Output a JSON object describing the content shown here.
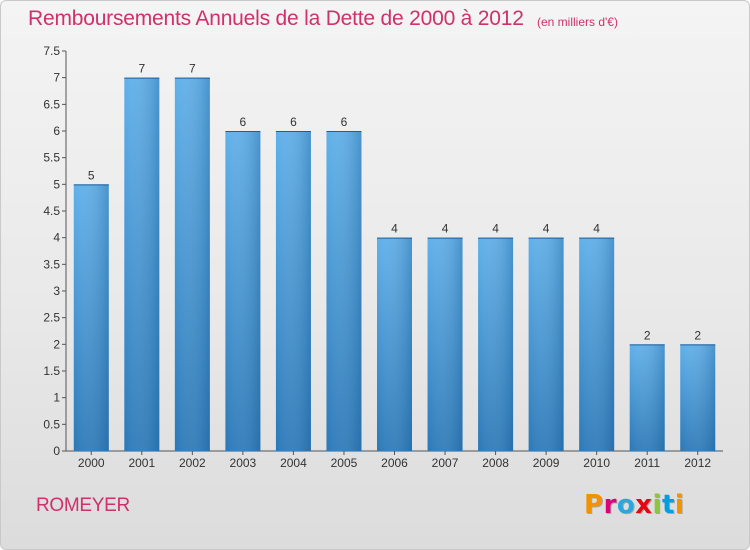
{
  "header": {
    "title": "Remboursements Annuels de la Dette de 2000 à 2012",
    "subtitle": "(en milliers d'€)"
  },
  "footer": {
    "commune": "ROMEYER",
    "logo_text": "Proxiti",
    "logo_colors": [
      "#f39200",
      "#e2007a",
      "#2aa7df",
      "#e30613",
      "#8cc63f",
      "#009fe3",
      "#f39200"
    ]
  },
  "colors": {
    "title": "#d0306b",
    "bar_light": "#5dade8",
    "bar_dark": "#2b79b9",
    "axis": "#555555",
    "grid": "#555555"
  },
  "chart_data": {
    "type": "bar",
    "title": "Remboursements Annuels de la Dette de 2000 à 2012",
    "subtitle": "(en milliers d'€)",
    "categories": [
      "2000",
      "2001",
      "2002",
      "2003",
      "2004",
      "2005",
      "2006",
      "2007",
      "2008",
      "2009",
      "2010",
      "2011",
      "2012"
    ],
    "values": [
      5,
      7,
      7,
      6,
      6,
      6,
      4,
      4,
      4,
      4,
      4,
      2,
      2
    ],
    "value_labels": [
      "5",
      "7",
      "7",
      "6",
      "6",
      "6",
      "4",
      "4",
      "4",
      "4",
      "4",
      "2",
      "2"
    ],
    "ylim": [
      0,
      7.5
    ],
    "yticks": [
      "0",
      "0.5",
      "1",
      "1.5",
      "2",
      "2.5",
      "3",
      "3.5",
      "4",
      "4.5",
      "5",
      "5.5",
      "6",
      "6.5",
      "7",
      "7.5"
    ],
    "xlabel": "",
    "ylabel": "",
    "grid": false
  }
}
